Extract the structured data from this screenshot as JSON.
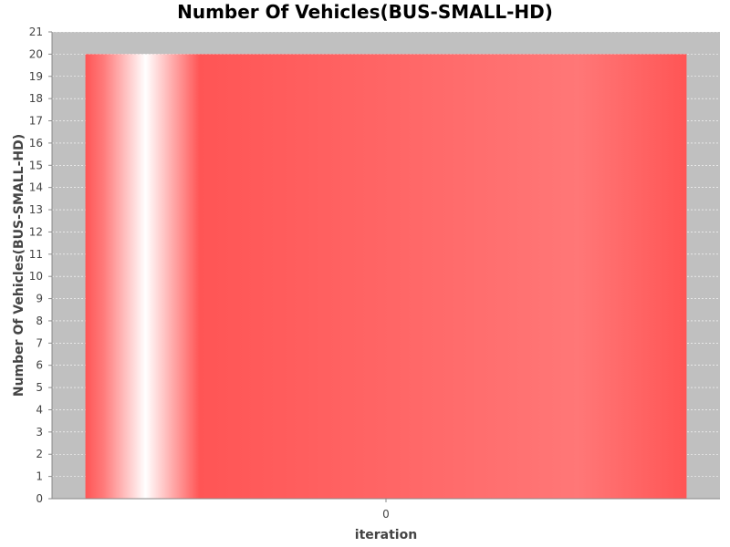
{
  "chart_data": {
    "type": "bar",
    "title": "Number Of Vehicles(BUS-SMALL-HD)",
    "xlabel": "iteration",
    "ylabel": "Number Of Vehicles(BUS-SMALL-HD)",
    "categories": [
      "0"
    ],
    "values": [
      20
    ],
    "ylim": [
      0,
      21
    ],
    "yticks": [
      "0",
      "1",
      "2",
      "3",
      "4",
      "5",
      "6",
      "7",
      "8",
      "9",
      "10",
      "11",
      "12",
      "13",
      "14",
      "15",
      "16",
      "17",
      "18",
      "19",
      "20",
      "21"
    ],
    "grid": true,
    "legend": "none"
  },
  "colors": {
    "plot_background": "#c0c0c0",
    "bar": "#ff5555",
    "gridline": "#ffffff"
  }
}
